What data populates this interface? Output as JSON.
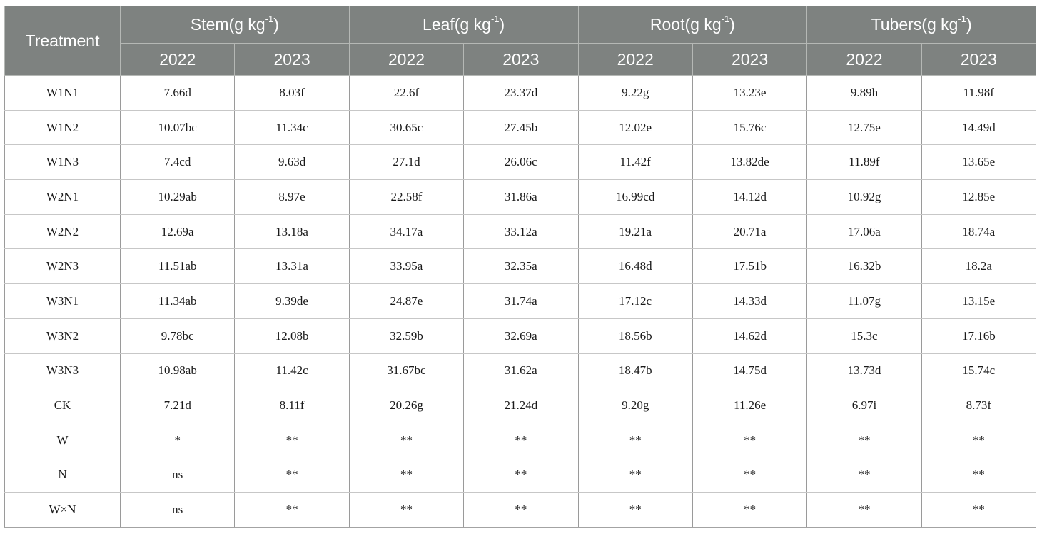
{
  "table": {
    "corner": "Treatment",
    "groups": [
      {
        "base": "Stem(g kg",
        "sup": "-1",
        "close": ")",
        "years": [
          "2022",
          "2023"
        ]
      },
      {
        "base": "Leaf(g kg",
        "sup": "-1",
        "close": ")",
        "years": [
          "2022",
          "2023"
        ]
      },
      {
        "base": "Root(g kg",
        "sup": "-1",
        "close": ")",
        "years": [
          "2022",
          "2023"
        ]
      },
      {
        "base": "Tubers(g kg",
        "sup": "-1",
        "close": ")",
        "years": [
          "2022",
          "2023"
        ]
      }
    ],
    "rows": [
      {
        "treatment": "W1N1",
        "values": [
          "7.66d",
          "8.03f",
          "22.6f",
          "23.37d",
          "9.22g",
          "13.23e",
          "9.89h",
          "11.98f"
        ]
      },
      {
        "treatment": "W1N2",
        "values": [
          "10.07bc",
          "11.34c",
          "30.65c",
          "27.45b",
          "12.02e",
          "15.76c",
          "12.75e",
          "14.49d"
        ]
      },
      {
        "treatment": "W1N3",
        "values": [
          "7.4cd",
          "9.63d",
          "27.1d",
          "26.06c",
          "11.42f",
          "13.82de",
          "11.89f",
          "13.65e"
        ]
      },
      {
        "treatment": "W2N1",
        "values": [
          "10.29ab",
          "8.97e",
          "22.58f",
          "31.86a",
          "16.99cd",
          "14.12d",
          "10.92g",
          "12.85e"
        ]
      },
      {
        "treatment": "W2N2",
        "values": [
          "12.69a",
          "13.18a",
          "34.17a",
          "33.12a",
          "19.21a",
          "20.71a",
          "17.06a",
          "18.74a"
        ]
      },
      {
        "treatment": "W2N3",
        "values": [
          "11.51ab",
          "13.31a",
          "33.95a",
          "32.35a",
          "16.48d",
          "17.51b",
          "16.32b",
          "18.2a"
        ]
      },
      {
        "treatment": "W3N1",
        "values": [
          "11.34ab",
          "9.39de",
          "24.87e",
          "31.74a",
          "17.12c",
          "14.33d",
          "11.07g",
          "13.15e"
        ]
      },
      {
        "treatment": "W3N2",
        "values": [
          "9.78bc",
          "12.08b",
          "32.59b",
          "32.69a",
          "18.56b",
          "14.62d",
          "15.3c",
          "17.16b"
        ]
      },
      {
        "treatment": "W3N3",
        "values": [
          "10.98ab",
          "11.42c",
          "31.67bc",
          "31.62a",
          "18.47b",
          "14.75d",
          "13.73d",
          "15.74c"
        ]
      },
      {
        "treatment": "CK",
        "values": [
          "7.21d",
          "8.11f",
          "20.26g",
          "21.24d",
          "9.20g",
          "11.26e",
          "6.97i",
          "8.73f"
        ]
      },
      {
        "treatment": "W",
        "values": [
          "*",
          "**",
          "**",
          "**",
          "**",
          "**",
          "**",
          "**"
        ]
      },
      {
        "treatment": "N",
        "values": [
          "ns",
          "**",
          "**",
          "**",
          "**",
          "**",
          "**",
          "**"
        ]
      },
      {
        "treatment": "W×N",
        "values": [
          "ns",
          "**",
          "**",
          "**",
          "**",
          "**",
          "**",
          "**"
        ]
      }
    ],
    "colors": {
      "header_bg": "#7e8280",
      "header_text": "#ffffff",
      "header_divider": "#b5b8b5",
      "body_text": "#1a1a1a",
      "border_vertical": "#9a9a9a",
      "border_horizontal": "#c7c7c7"
    }
  }
}
